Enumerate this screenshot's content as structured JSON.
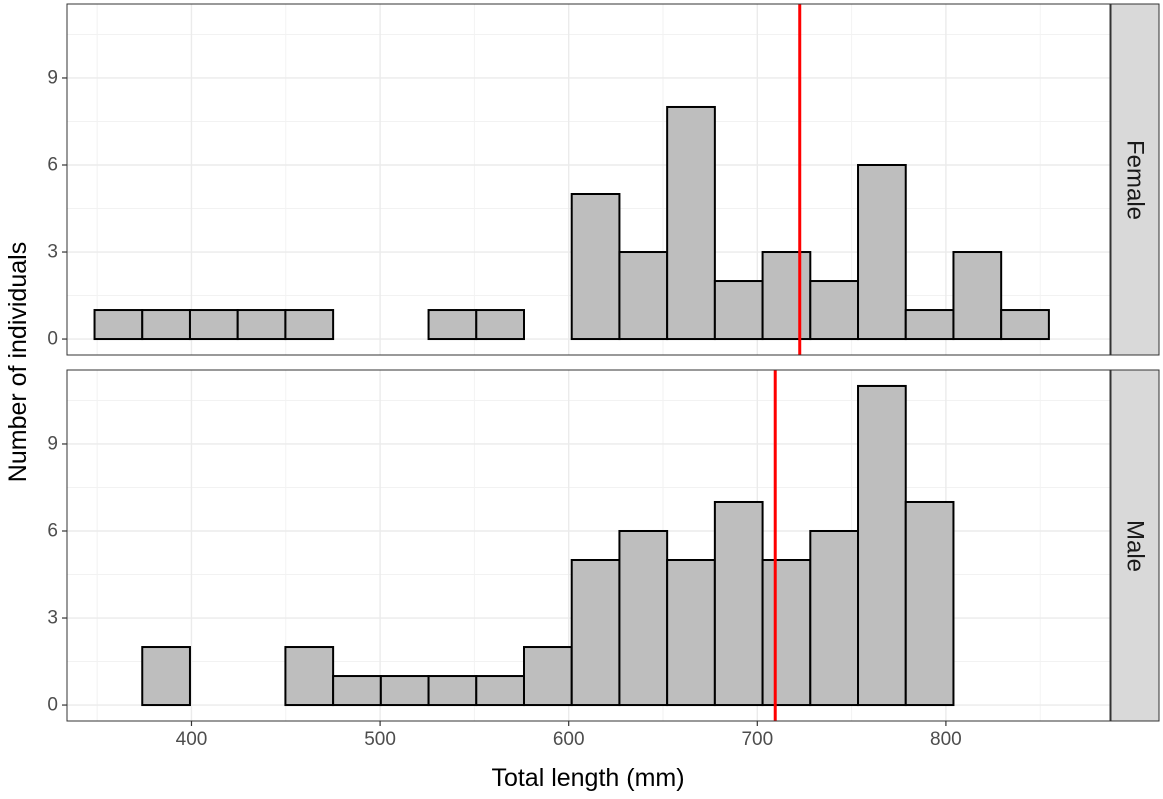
{
  "chart_data": {
    "type": "bar",
    "subtype": "faceted-histogram",
    "xlabel": "Total length (mm)",
    "ylabel": "Number of individuals",
    "x_ticks": [
      400,
      500,
      600,
      700,
      800
    ],
    "y_ticks": [
      0,
      3,
      6,
      9
    ],
    "xlim": [
      334,
      887
    ],
    "ylim": [
      -0.55,
      11.55
    ],
    "bin_width": 25.3,
    "bin_start": 348.6,
    "grid": true,
    "bar_fill": "#bebebe",
    "bar_stroke": "#000000",
    "mean_line_color": "#ff0000",
    "strip_fill": "#d9d9d9",
    "facets": [
      {
        "name": "Female",
        "counts": [
          1,
          1,
          1,
          1,
          1,
          0,
          0,
          1,
          1,
          0,
          5,
          3,
          8,
          2,
          3,
          2,
          6,
          1,
          3,
          1
        ],
        "mean_line_x": 722.5
      },
      {
        "name": "Male",
        "counts": [
          0,
          2,
          0,
          0,
          2,
          1,
          1,
          1,
          1,
          2,
          5,
          6,
          5,
          7,
          5,
          6,
          11,
          7,
          0,
          0
        ],
        "mean_line_x": 709.5
      }
    ]
  }
}
